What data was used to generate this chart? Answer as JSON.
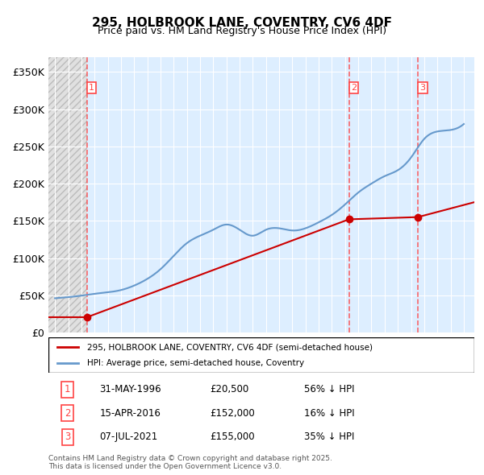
{
  "title": "295, HOLBROOK LANE, COVENTRY, CV6 4DF",
  "subtitle": "Price paid vs. HM Land Registry's House Price Index (HPI)",
  "ylabel": "",
  "ylim": [
    0,
    370000
  ],
  "yticks": [
    0,
    50000,
    100000,
    150000,
    200000,
    250000,
    300000,
    350000
  ],
  "ytick_labels": [
    "£0",
    "£50K",
    "£100K",
    "£150K",
    "£200K",
    "£250K",
    "£300K",
    "£350K"
  ],
  "background_color": "#ffffff",
  "plot_bg_color": "#ddeeff",
  "hatch_color": "#cccccc",
  "grid_color": "#ffffff",
  "sale_dates_num": [
    1996.42,
    2016.29,
    2021.52
  ],
  "sale_prices": [
    20500,
    152000,
    155000
  ],
  "sale_labels": [
    "1",
    "2",
    "3"
  ],
  "vline_color": "#ff4444",
  "sale_dot_color": "#cc0000",
  "house_line_color": "#cc0000",
  "hpi_line_color": "#6699cc",
  "legend_label_house": "295, HOLBROOK LANE, COVENTRY, CV6 4DF (semi-detached house)",
  "legend_label_hpi": "HPI: Average price, semi-detached house, Coventry",
  "table_data": [
    {
      "num": "1",
      "date": "31-MAY-1996",
      "price": "£20,500",
      "hpi": "56% ↓ HPI"
    },
    {
      "num": "2",
      "date": "15-APR-2016",
      "price": "£152,000",
      "hpi": "16% ↓ HPI"
    },
    {
      "num": "3",
      "date": "07-JUL-2021",
      "price": "£155,000",
      "hpi": "35% ↓ HPI"
    }
  ],
  "footnote": "Contains HM Land Registry data © Crown copyright and database right 2025.\nThis data is licensed under the Open Government Licence v3.0.",
  "hpi_years": [
    1994,
    1995,
    1996,
    1997,
    1998,
    1999,
    2000,
    2001,
    2002,
    2003,
    2004,
    2005,
    2006,
    2007,
    2008,
    2009,
    2010,
    2011,
    2012,
    2013,
    2014,
    2015,
    2016,
    2017,
    2018,
    2019,
    2020,
    2021,
    2022,
    2023,
    2024,
    2025
  ],
  "hpi_values": [
    46000,
    47500,
    49500,
    52000,
    54000,
    57000,
    63000,
    72000,
    85000,
    103000,
    120000,
    130000,
    138000,
    145000,
    138000,
    130000,
    138000,
    140000,
    137000,
    140000,
    148000,
    158000,
    172000,
    188000,
    200000,
    210000,
    218000,
    235000,
    260000,
    270000,
    272000,
    280000
  ],
  "house_segments": {
    "x": [
      1996.42,
      2016.29,
      2021.52,
      2025.5
    ],
    "y": [
      20500,
      152000,
      155000,
      175000
    ]
  },
  "xmin": 1993.5,
  "xmax": 2025.8,
  "xticks": [
    1994,
    1995,
    1996,
    1997,
    1998,
    1999,
    2000,
    2001,
    2002,
    2003,
    2004,
    2005,
    2006,
    2007,
    2008,
    2009,
    2010,
    2011,
    2012,
    2013,
    2014,
    2015,
    2016,
    2017,
    2018,
    2019,
    2020,
    2021,
    2022,
    2023,
    2024,
    2025
  ]
}
